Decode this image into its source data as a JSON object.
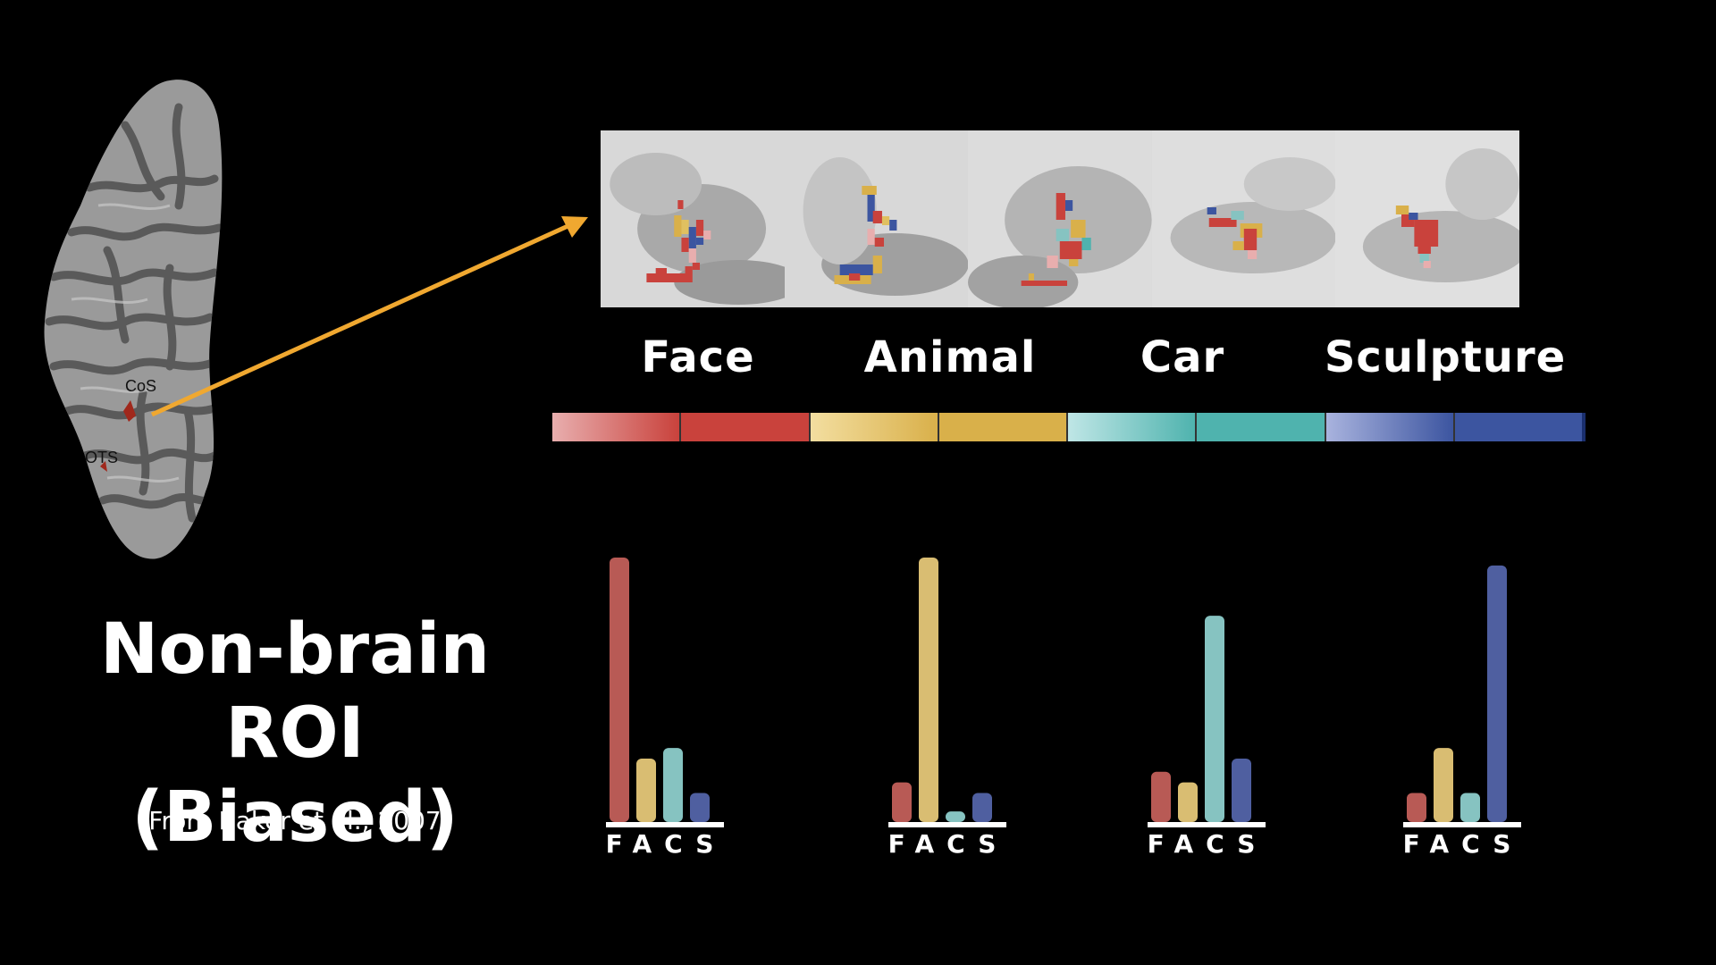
{
  "brain": {
    "labels": [
      "CoS",
      "OTS"
    ]
  },
  "scan_panels": [
    {
      "name": "face"
    },
    {
      "name": "animal"
    },
    {
      "name": "car"
    },
    {
      "name": "sculpture"
    },
    {
      "name": "extra"
    }
  ],
  "categories": [
    "Face",
    "Animal",
    "Car",
    "Sculpture"
  ],
  "colors": {
    "face": "#b85a55",
    "animal": "#d9bd72",
    "car": "#86c3c1",
    "sculpture": "#4f5fa0",
    "arrow": "#f0a830"
  },
  "colorbar": [
    "#e8aeae",
    "#c9423c",
    "#f3dea0",
    "#d9b04a",
    "#bfe6e6",
    "#4fb3ae",
    "#a9b3de",
    "#3c55a0"
  ],
  "title_line1": "Non-brain",
  "title_line2": "ROI (Biased)",
  "citation": "From Baker et al., 2007",
  "chart_data": [
    {
      "type": "bar",
      "categories": [
        "F",
        "A",
        "C",
        "S"
      ],
      "values": [
        1.0,
        0.24,
        0.28,
        0.11
      ]
    },
    {
      "type": "bar",
      "categories": [
        "F",
        "A",
        "C",
        "S"
      ],
      "values": [
        0.15,
        1.0,
        0.04,
        0.11
      ]
    },
    {
      "type": "bar",
      "categories": [
        "F",
        "A",
        "C",
        "S"
      ],
      "values": [
        0.19,
        0.15,
        0.78,
        0.24
      ]
    },
    {
      "type": "bar",
      "categories": [
        "F",
        "A",
        "C",
        "S"
      ],
      "values": [
        0.11,
        0.28,
        0.11,
        0.97
      ]
    }
  ],
  "tick_label": "FACS"
}
